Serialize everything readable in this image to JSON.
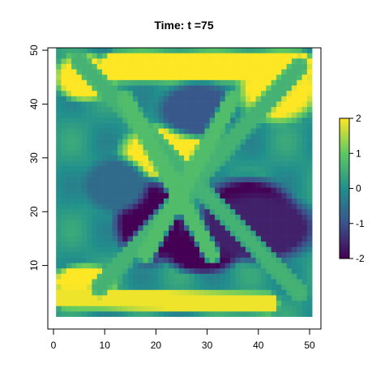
{
  "chart_data": {
    "type": "heatmap",
    "title": "Time: t =75",
    "xlabel": "",
    "ylabel": "",
    "x_range": [
      1,
      50
    ],
    "y_range": [
      1,
      50
    ],
    "xlim": [
      0.5,
      50.5
    ],
    "ylim": [
      0.5,
      50.5
    ],
    "x_ticks": [
      0,
      10,
      20,
      30,
      40,
      50
    ],
    "y_ticks": [
      10,
      20,
      30,
      40,
      50
    ],
    "x_tick_labels": [
      "0",
      "10",
      "20",
      "30",
      "40",
      "50"
    ],
    "y_tick_labels": [
      "10",
      "20",
      "30",
      "40",
      "50"
    ],
    "value_range": [
      -2,
      2
    ],
    "colorbar_ticks": [
      2,
      1,
      0,
      -1,
      -2
    ],
    "colorbar_tick_labels": [
      "2",
      "1",
      "0",
      "-1",
      "-2"
    ],
    "colormap": "viridis",
    "colormap_stops": [
      "#440154",
      "#3b528b",
      "#21908c",
      "#5dc863",
      "#fde725"
    ],
    "background_value": 0.1,
    "features": [
      {
        "kind": "band",
        "description": "top band",
        "points": [
          [
            12,
            47
          ],
          [
            48,
            47
          ]
        ],
        "width": 2.4,
        "value": 2.0
      },
      {
        "kind": "blob",
        "description": "top-left yellow",
        "center": [
          6,
          45
        ],
        "radius": [
          4.5,
          3.5
        ],
        "value": 2.0
      },
      {
        "kind": "blob",
        "description": "top-right yellow",
        "center": [
          44,
          43
        ],
        "radius": [
          6,
          5
        ],
        "value": 2.0
      },
      {
        "kind": "blob",
        "description": "upper-middle yellow",
        "center": [
          22,
          31
        ],
        "radius": [
          7,
          4
        ],
        "value": 2.0
      },
      {
        "kind": "blob",
        "description": "bottom-left yellow",
        "center": [
          6,
          7
        ],
        "radius": [
          5,
          2.5
        ],
        "value": 2.0
      },
      {
        "kind": "band",
        "description": "bottom yellow band",
        "points": [
          [
            2,
            4
          ],
          [
            42,
            3
          ]
        ],
        "width": 1.5,
        "value": 1.9
      },
      {
        "kind": "blob",
        "description": "lower-left dark region",
        "center": [
          19,
          18
        ],
        "radius": [
          5.5,
          6
        ],
        "value": -2.0
      },
      {
        "kind": "blob",
        "description": "central-bottom dark region",
        "center": [
          29,
          13
        ],
        "radius": [
          6,
          3.5
        ],
        "value": -2.0
      },
      {
        "kind": "blob",
        "description": "right dark region",
        "center": [
          38,
          20
        ],
        "radius": [
          7,
          5
        ],
        "value": -2.0
      },
      {
        "kind": "blob",
        "description": "purple halo",
        "center": [
          40,
          17
        ],
        "radius": [
          9,
          5
        ],
        "value": -1.6
      },
      {
        "kind": "blob",
        "description": "blue patch top",
        "center": [
          28,
          39
        ],
        "radius": [
          6,
          4
        ],
        "value": -0.9
      },
      {
        "kind": "blob",
        "description": "blue patch left",
        "center": [
          12,
          25
        ],
        "radius": [
          5,
          4
        ],
        "value": -0.6
      },
      {
        "kind": "band",
        "description": "diagonal ridge NW-SE",
        "points": [
          [
            5,
            48
          ],
          [
            48,
            5
          ]
        ],
        "width": 1.3,
        "value": 0.6
      },
      {
        "kind": "band",
        "description": "diagonal ridge NE-SW",
        "points": [
          [
            48,
            47
          ],
          [
            9,
            6
          ]
        ],
        "width": 1.3,
        "value": 0.6
      },
      {
        "kind": "band",
        "description": "ridge to lower-right",
        "points": [
          [
            14,
            41
          ],
          [
            31,
            12
          ]
        ],
        "width": 1.2,
        "value": 0.8
      },
      {
        "kind": "band",
        "description": "ridge to lower-left",
        "points": [
          [
            35,
            41
          ],
          [
            18,
            12
          ]
        ],
        "width": 1.2,
        "value": 0.8
      }
    ]
  }
}
